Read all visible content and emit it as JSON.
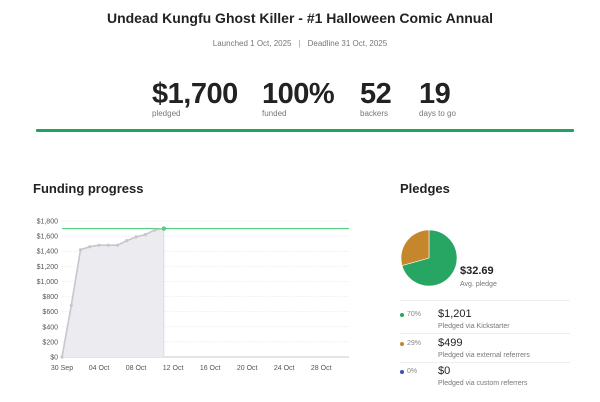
{
  "campaign": {
    "title": "Undead Kungfu Ghost Killer - #1 Halloween Comic Annual",
    "launched": "Launched 1 Oct, 2025",
    "deadline": "Deadline 31 Oct, 2025"
  },
  "stats": [
    {
      "value": "$1,700",
      "label": "pledged"
    },
    {
      "value": "100%",
      "label": "funded"
    },
    {
      "value": "52",
      "label": "backers"
    },
    {
      "value": "19",
      "label": "days to go"
    }
  ],
  "colors": {
    "accent": "#1fa45e",
    "kickstarter": "#27a563",
    "external": "#c4872b",
    "custom": "#3b4fb8",
    "area": "#ececf0",
    "line": "#c6c6cf",
    "goal": "#4fcf7f"
  },
  "funding": {
    "title": "Funding progress",
    "chart_data": {
      "type": "area",
      "x_ticks": [
        "30 Sep",
        "04 Oct",
        "08 Oct",
        "12 Oct",
        "16 Oct",
        "20 Oct",
        "24 Oct",
        "28 Oct"
      ],
      "y_ticks": [
        "$0",
        "$200",
        "$400",
        "$600",
        "$800",
        "$1,000",
        "$1,200",
        "$1,400",
        "$1,600",
        "$1,800"
      ],
      "ylim": [
        0,
        1800
      ],
      "x_range_days": [
        0,
        31
      ],
      "goal": 1700,
      "series": [
        {
          "values": [
            [
              0,
              0
            ],
            [
              1,
              680
            ],
            [
              2,
              1420
            ],
            [
              3,
              1460
            ],
            [
              4,
              1480
            ],
            [
              5,
              1480
            ],
            [
              6,
              1480
            ],
            [
              7,
              1540
            ],
            [
              8,
              1590
            ],
            [
              9,
              1620
            ],
            [
              10,
              1680
            ],
            [
              11,
              1700
            ]
          ]
        }
      ]
    }
  },
  "pledges": {
    "title": "Pledges",
    "avg_value": "$32.69",
    "avg_label": "Avg. pledge",
    "chart_data": {
      "type": "pie",
      "slices": [
        {
          "label": "Pledged via Kickstarter",
          "value": 1201
        },
        {
          "label": "Pledged via external referrers",
          "value": 499
        },
        {
          "label": "Pledged via custom referrers",
          "value": 0
        }
      ]
    },
    "rows": [
      {
        "pct": "70%",
        "amount": "$1,201",
        "label": "Pledged via Kickstarter"
      },
      {
        "pct": "29%",
        "amount": "$499",
        "label": "Pledged via external referrers"
      },
      {
        "pct": "0%",
        "amount": "$0",
        "label": "Pledged via custom referrers"
      }
    ]
  }
}
